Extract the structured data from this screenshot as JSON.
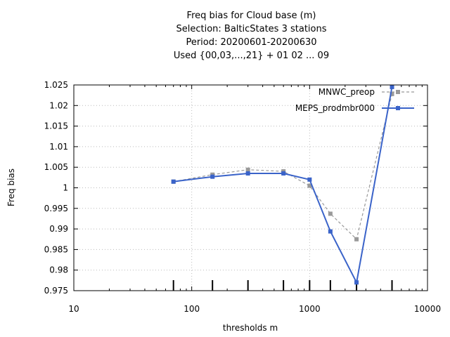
{
  "chart_data": {
    "type": "line",
    "title_lines": [
      "Freq bias  for Cloud base (m)",
      "Selection: BalticStates      3 stations",
      "Period: 20200601-20200630",
      "Used {00,03,...,21} + 01 02 ... 09"
    ],
    "xlabel": "thresholds m",
    "ylabel": "Freq bias",
    "x_scale": "log",
    "xlim": [
      10,
      10000
    ],
    "ylim": [
      0.975,
      1.025
    ],
    "x_ticks": [
      10,
      100,
      1000,
      10000
    ],
    "x_tick_labels": [
      "10",
      "100",
      "1000",
      "10000"
    ],
    "y_ticks": [
      0.975,
      0.98,
      0.985,
      0.99,
      0.995,
      1,
      1.005,
      1.01,
      1.015,
      1.02,
      1.025
    ],
    "y_tick_labels": [
      "0.975",
      "0.98",
      "0.985",
      "0.99",
      "0.995",
      "1",
      "1.005",
      "1.01",
      "1.015",
      "1.02",
      "1.025"
    ],
    "grid": true,
    "legend_position": "top-right",
    "thresholds": [
      70,
      150,
      300,
      600,
      1000,
      1500,
      2500,
      5000
    ],
    "series": [
      {
        "name": "MNWC_preop",
        "color": "#999999",
        "style": "dashed",
        "x": [
          70,
          150,
          300,
          600,
          1000,
          1500,
          2500,
          5000
        ],
        "y": [
          1.0015,
          1.0032,
          1.0044,
          1.004,
          1.0005,
          0.9937,
          0.9875,
          1.0228
        ]
      },
      {
        "name": "MEPS_prodmbr000",
        "color": "#3a63c9",
        "style": "solid",
        "x": [
          70,
          150,
          300,
          600,
          1000,
          1500,
          2500,
          5000
        ],
        "y": [
          1.0015,
          1.0027,
          1.0035,
          1.0035,
          1.002,
          0.9894,
          0.977,
          1.0245
        ]
      }
    ]
  }
}
